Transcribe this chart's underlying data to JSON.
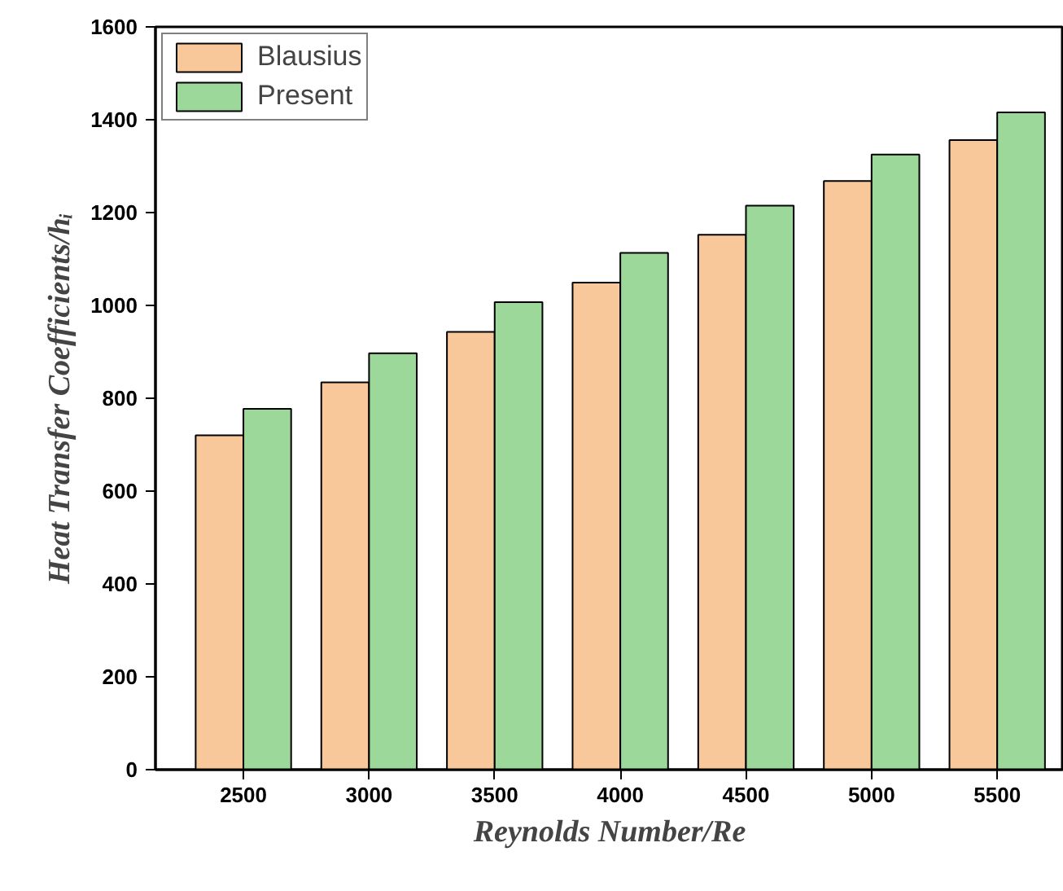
{
  "chart_data": {
    "type": "bar",
    "xlabel": "Reynolds Number/Re",
    "ylabel": "Heat Transfer Coefficients/hᵢ",
    "categories": [
      "2500",
      "3000",
      "3500",
      "4000",
      "4500",
      "5000",
      "5500"
    ],
    "series": [
      {
        "name": "Blausius",
        "color": "#f9c89a",
        "values": [
          720,
          834,
          943,
          1049,
          1152,
          1268,
          1356
        ]
      },
      {
        "name": "Present",
        "color": "#9dd89b",
        "values": [
          777,
          897,
          1007,
          1113,
          1215,
          1325,
          1416
        ]
      }
    ],
    "ylim": [
      0,
      1600
    ],
    "yticks": [
      0,
      200,
      400,
      600,
      800,
      1000,
      1200,
      1400,
      1600
    ],
    "grid": false,
    "legend": "top left"
  }
}
